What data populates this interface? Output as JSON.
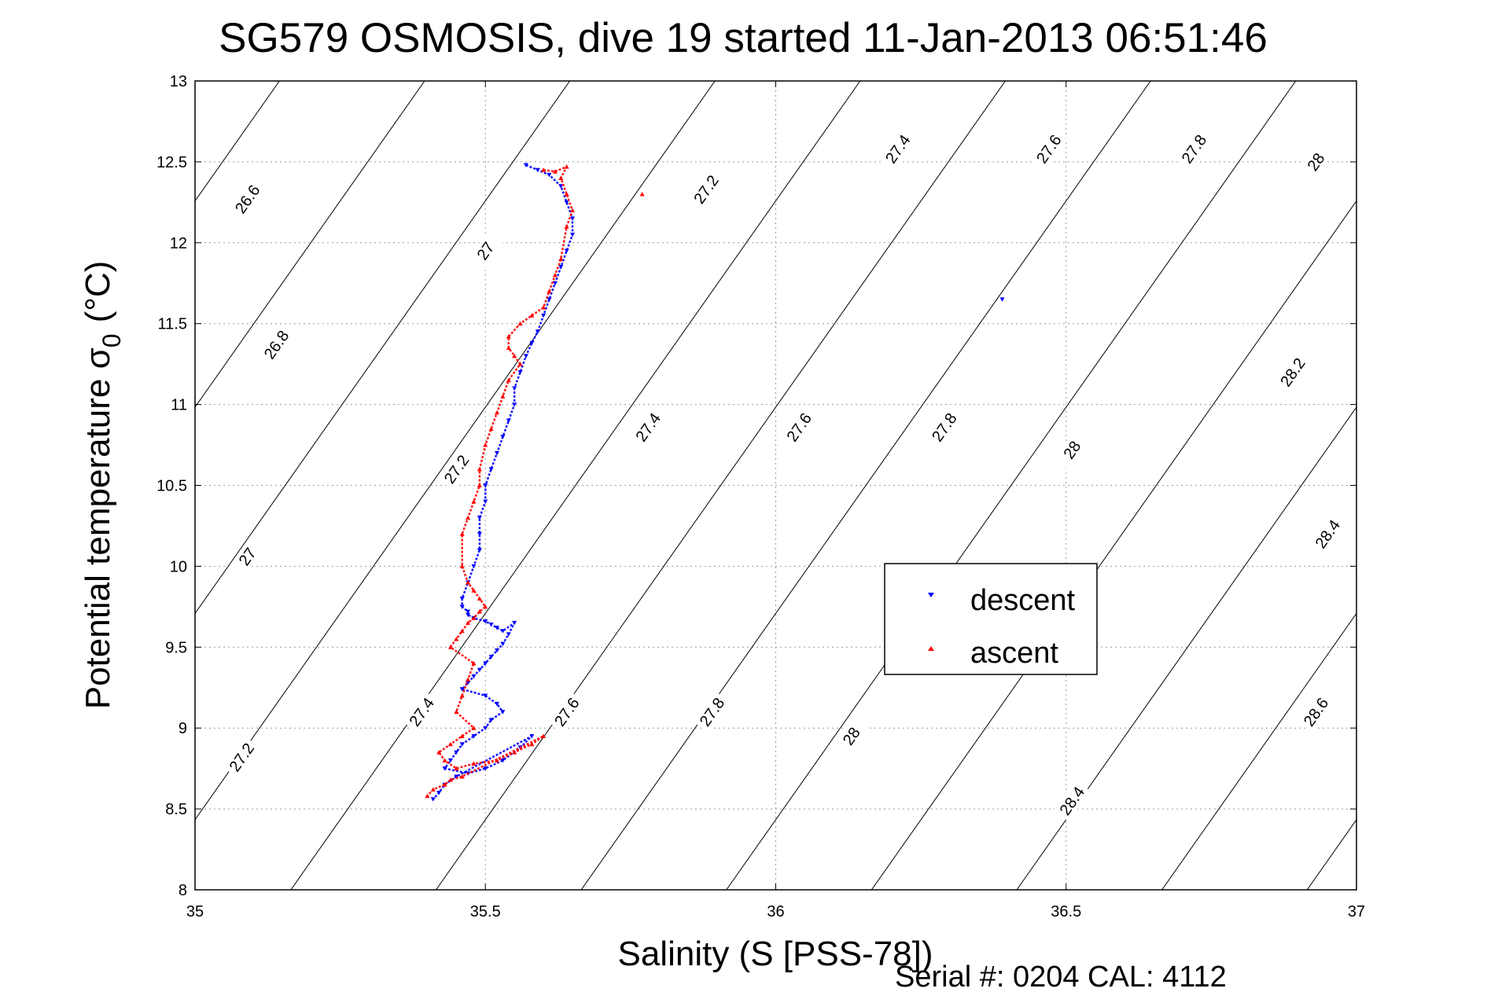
{
  "chart_data": {
    "type": "scatter",
    "title": "SG579 OSMOSIS, dive 19 started 11-Jan-2013 06:51:46",
    "xlabel": "Salinity (S [PSS-78])",
    "ylabel_main": "Potential temperature σ",
    "ylabel_sub": "0",
    "ylabel_unit": "(°C)",
    "xlim": [
      35,
      37
    ],
    "ylim": [
      8,
      13
    ],
    "xticks": [
      "35",
      "35.5",
      "36",
      "36.5",
      "37"
    ],
    "yticks": [
      "8",
      "8.5",
      "9",
      "9.5",
      "10",
      "10.5",
      "11",
      "11.5",
      "12",
      "12.5",
      "13"
    ],
    "grid": true,
    "legend_position": "center-right",
    "footer": "Serial #: 0204  CAL: 4112",
    "colors": {
      "descent": "#0000ff",
      "ascent": "#ff0000",
      "contour": "#000000",
      "grid": "#999999"
    },
    "density_contours": [
      "26.6",
      "26.8",
      "27",
      "27.2",
      "27.4",
      "27.6",
      "27.8",
      "28",
      "28.2",
      "28.4",
      "28.6"
    ],
    "contour_label_positions": [
      {
        "label": "26.6",
        "s": 35.09,
        "t": 12.27
      },
      {
        "label": "26.8",
        "s": 35.14,
        "t": 11.37
      },
      {
        "label": "27",
        "s": 35.99,
        "t": 0
      },
      {
        "label": "27",
        "s": 35.5,
        "t": 11.95
      },
      {
        "label": "27",
        "s": 35.09,
        "t": 10.06
      },
      {
        "label": "27.2",
        "s": 35.88,
        "t": 12.33
      },
      {
        "label": "27.2",
        "s": 35.45,
        "t": 10.6
      },
      {
        "label": "27.2",
        "s": 35.08,
        "t": 8.82
      },
      {
        "label": "27.4",
        "s": 36.21,
        "t": 12.58
      },
      {
        "label": "27.4",
        "s": 35.78,
        "t": 10.86
      },
      {
        "label": "27.4",
        "s": 35.39,
        "t": 9.1
      },
      {
        "label": "27.6",
        "s": 36.47,
        "t": 12.58
      },
      {
        "label": "27.6",
        "s": 36.04,
        "t": 10.86
      },
      {
        "label": "27.6",
        "s": 35.64,
        "t": 9.1
      },
      {
        "label": "27.8",
        "s": 36.72,
        "t": 12.58
      },
      {
        "label": "27.8",
        "s": 36.29,
        "t": 10.86
      },
      {
        "label": "27.8",
        "s": 35.89,
        "t": 9.1
      },
      {
        "label": "28",
        "s": 36.93,
        "t": 12.5
      },
      {
        "label": "28",
        "s": 36.51,
        "t": 10.72
      },
      {
        "label": "28",
        "s": 36.13,
        "t": 8.95
      },
      {
        "label": "28.2",
        "s": 36.89,
        "t": 11.2
      },
      {
        "label": "28.4",
        "s": 36.95,
        "t": 10.2
      },
      {
        "label": "28.4",
        "s": 36.51,
        "t": 8.55
      },
      {
        "label": "28.6",
        "s": 36.93,
        "t": 9.1
      }
    ],
    "series": [
      {
        "name": "descent",
        "marker": "triangle-down",
        "x": [
          35.57,
          35.59,
          35.61,
          35.63,
          35.64,
          35.65,
          35.65,
          35.64,
          35.63,
          35.62,
          35.61,
          35.6,
          35.59,
          35.58,
          35.57,
          35.56,
          35.55,
          35.55,
          35.54,
          35.53,
          35.52,
          35.51,
          35.5,
          35.5,
          35.49,
          35.49,
          35.49,
          35.48,
          35.47,
          35.46,
          35.46,
          35.47,
          35.47,
          35.48,
          35.5,
          35.51,
          35.52,
          35.53,
          35.55,
          35.54,
          35.53,
          35.52,
          35.51,
          35.5,
          35.49,
          35.48,
          35.47,
          35.46,
          35.5,
          35.52,
          35.53,
          35.51,
          35.5,
          35.48,
          35.46,
          35.45,
          35.44,
          35.43,
          35.47,
          35.5,
          35.53,
          35.56,
          35.58,
          35.45,
          35.43,
          35.42,
          35.41,
          36.39
        ],
        "y": [
          12.48,
          12.45,
          12.42,
          12.35,
          12.25,
          12.15,
          12.05,
          11.95,
          11.85,
          11.75,
          11.65,
          11.55,
          11.45,
          11.38,
          11.3,
          11.2,
          11.1,
          11.0,
          10.9,
          10.8,
          10.7,
          10.6,
          10.5,
          10.4,
          10.3,
          10.2,
          10.1,
          10.0,
          9.9,
          9.8,
          9.75,
          9.72,
          9.7,
          9.68,
          9.66,
          9.64,
          9.62,
          9.6,
          9.65,
          9.58,
          9.52,
          9.48,
          9.44,
          9.4,
          9.36,
          9.32,
          9.28,
          9.24,
          9.2,
          9.15,
          9.1,
          9.05,
          9.0,
          8.95,
          8.9,
          8.85,
          8.8,
          8.75,
          8.72,
          8.75,
          8.8,
          8.88,
          8.95,
          8.7,
          8.65,
          8.6,
          8.56,
          11.65
        ]
      },
      {
        "name": "ascent",
        "marker": "triangle-up",
        "x": [
          35.6,
          35.62,
          35.64,
          35.63,
          35.64,
          35.65,
          35.64,
          35.63,
          35.62,
          35.61,
          35.6,
          35.58,
          35.56,
          35.54,
          35.54,
          35.55,
          35.56,
          35.54,
          35.53,
          35.52,
          35.51,
          35.5,
          35.49,
          35.49,
          35.48,
          35.47,
          35.46,
          35.46,
          35.47,
          35.48,
          35.49,
          35.5,
          35.49,
          35.48,
          35.47,
          35.46,
          35.45,
          35.44,
          35.48,
          35.47,
          35.46,
          35.45,
          35.48,
          35.46,
          35.44,
          35.42,
          35.43,
          35.45,
          35.48,
          35.52,
          35.55,
          35.58,
          35.6,
          35.46,
          35.44,
          35.43,
          35.41,
          35.4,
          35.77
        ],
        "y": [
          12.45,
          12.44,
          12.47,
          12.4,
          12.3,
          12.2,
          12.1,
          11.9,
          11.8,
          11.7,
          11.6,
          11.55,
          11.5,
          11.42,
          11.35,
          11.3,
          11.25,
          11.15,
          11.05,
          10.95,
          10.85,
          10.75,
          10.6,
          10.5,
          10.4,
          10.3,
          10.2,
          10.0,
          9.9,
          9.85,
          9.8,
          9.75,
          9.72,
          9.68,
          9.65,
          9.6,
          9.55,
          9.5,
          9.4,
          9.3,
          9.2,
          9.1,
          9.0,
          8.95,
          8.9,
          8.85,
          8.8,
          8.75,
          8.78,
          8.8,
          8.85,
          8.9,
          8.95,
          8.7,
          8.68,
          8.65,
          8.62,
          8.58,
          12.3
        ]
      }
    ]
  }
}
